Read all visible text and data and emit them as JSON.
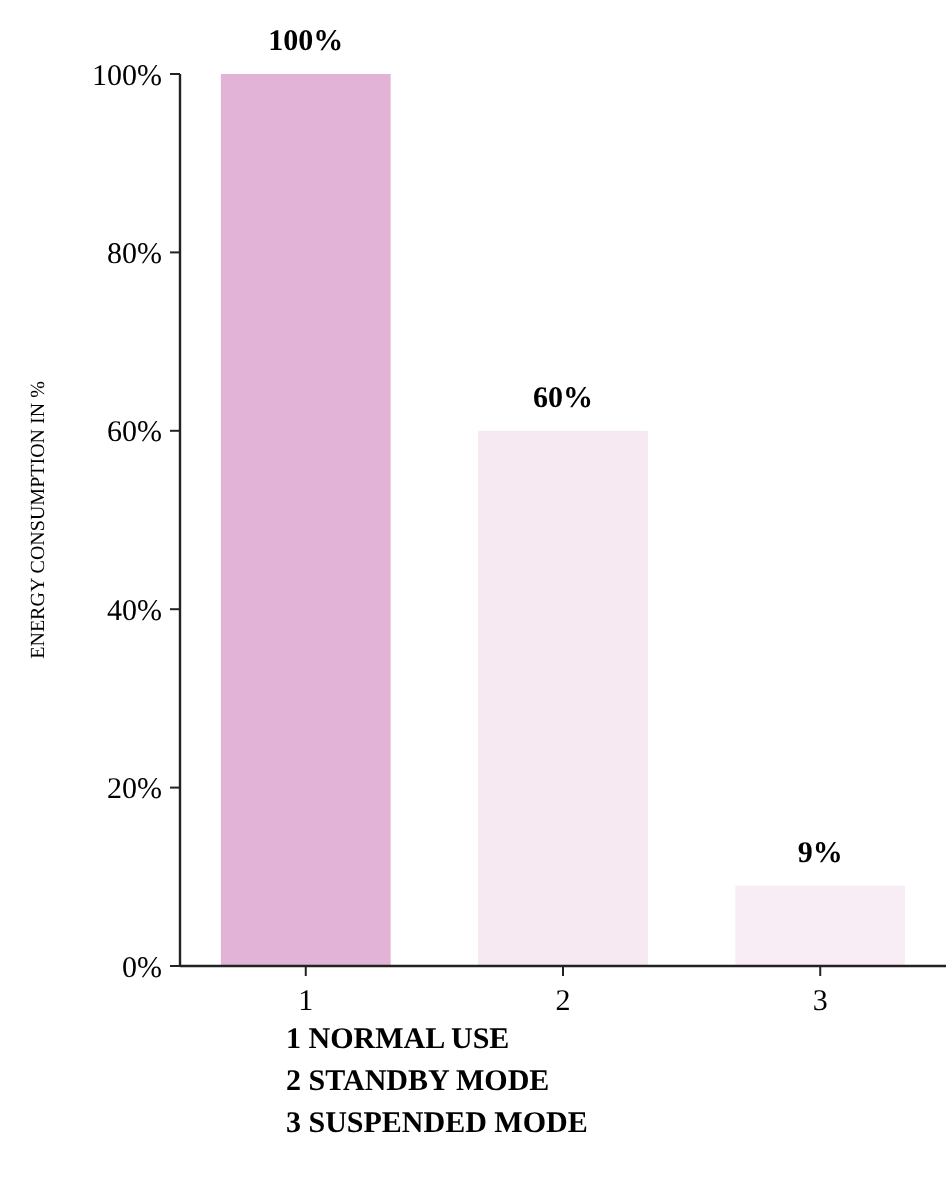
{
  "chart_data": {
    "type": "bar",
    "ylabel": "ENERGY CONSUMPTION IN %",
    "categories": [
      "1",
      "2",
      "3"
    ],
    "values": [
      100,
      60,
      9
    ],
    "colors": [
      "#e2b3d6",
      "#f7e9f2",
      "#f9edf5"
    ],
    "value_labels": [
      "100%",
      "60%",
      "9%"
    ],
    "ylim": [
      0,
      100
    ],
    "yticks": [
      {
        "value": 0,
        "label": "0%"
      },
      {
        "value": 20,
        "label": "20%"
      },
      {
        "value": 40,
        "label": "40%"
      },
      {
        "value": 60,
        "label": "60%"
      },
      {
        "value": 80,
        "label": "80%"
      },
      {
        "value": 100,
        "label": "100%"
      }
    ],
    "annotations": [
      "1 NORMAL USE",
      "2 STANDBY MODE",
      "3 SUSPENDED MODE"
    ],
    "grid": false
  }
}
